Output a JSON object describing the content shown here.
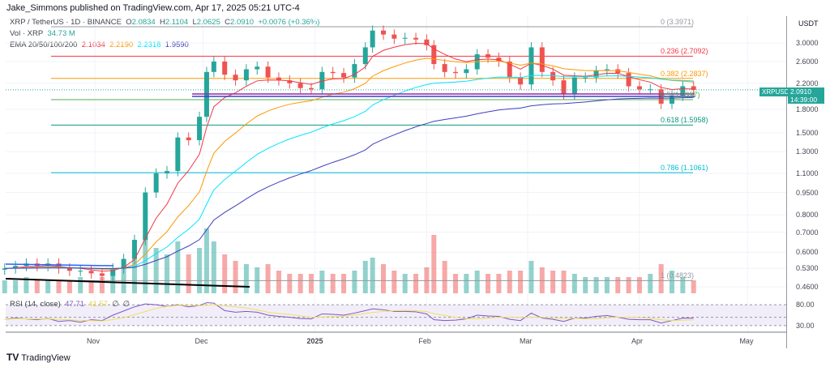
{
  "header": {
    "publisher": "Jake_Simmons published on TradingView.com, Apr 17, 2025 05:21 UTC-4",
    "symbol": "XRP / TetherUS · 1D · BINANCE",
    "o_label": "O",
    "o": "2.0834",
    "h_label": "H",
    "h": "2.1104",
    "l_label": "L",
    "l": "2.0625",
    "c_label": "C",
    "c": "2.0910",
    "change": "+0.0076 (+0.36%)",
    "vol_label": "Vol · XRP",
    "vol": "34.73 M",
    "ema_label": "EMA 20/50/100/200",
    "ema20": "2.1034",
    "ema50": "2.2190",
    "ema100": "2.2318",
    "ema200": "1.9590",
    "rsi_label": "RSI (14, close)",
    "rsi": "47.71",
    "rsi_ma": "41.57",
    "rsi_na1": "∅",
    "rsi_na2": "∅"
  },
  "colors": {
    "up": "#26a69a",
    "down": "#ef5350",
    "ema20": "#f23645",
    "ema50": "#ff9800",
    "ema100": "#00e5ff",
    "ema200": "#3f3fbf",
    "rsi": "#7e57c2",
    "rsi_ma": "#f0e060"
  },
  "price_tag": {
    "symbol": "XRPUSDT",
    "price": "2.0910",
    "countdown": "14:39:00"
  },
  "footer": {
    "logo": "TradingView"
  },
  "chart_data": {
    "type": "candlestick",
    "currency": "USDT",
    "y_scale": "log",
    "ylim": [
      0.44,
      3.7
    ],
    "y_ticks": [
      "3.0000",
      "2.6000",
      "2.2000",
      "1.8000",
      "1.5000",
      "1.3000",
      "1.1000",
      "0.9500",
      "0.8000",
      "0.7000",
      "0.6000",
      "0.5300",
      "0.4600"
    ],
    "x_ticks": [
      {
        "label": "Nov",
        "date": "2024-11-01"
      },
      {
        "label": "Dec",
        "date": "2024-12-01"
      },
      {
        "label": "2025",
        "date": "2025-01-01"
      },
      {
        "label": "Feb",
        "date": "2025-02-01"
      },
      {
        "label": "Mar",
        "date": "2025-03-01"
      },
      {
        "label": "Apr",
        "date": "2025-04-01"
      },
      {
        "label": "May",
        "date": "2025-05-01"
      }
    ],
    "fib_levels": [
      {
        "label": "0 (3.3971)",
        "value": 3.3971,
        "color": "#9598a1"
      },
      {
        "label": "0.236 (2.7092)",
        "value": 2.7092,
        "color": "#f23645"
      },
      {
        "label": "0.382 (2.2837)",
        "value": 2.2837,
        "color": "#ff9800"
      },
      {
        "label": "0.5 (1.9397)",
        "value": 1.9397,
        "color": "#4caf50"
      },
      {
        "label": "0.618 (1.5958)",
        "value": 1.5958,
        "color": "#089981"
      },
      {
        "label": "0.786 (1.1061)",
        "value": 1.1061,
        "color": "#00bcd4"
      },
      {
        "label": "1 (0.4823)",
        "value": 0.4823,
        "color": "#9598a1"
      }
    ],
    "rsi_ticks": [
      "80.00",
      "30.00"
    ],
    "closes": [
      [
        "2024-10-07",
        0.53
      ],
      [
        "2024-10-10",
        0.54
      ],
      [
        "2024-10-13",
        0.55
      ],
      [
        "2024-10-16",
        0.54
      ],
      [
        "2024-10-19",
        0.55
      ],
      [
        "2024-10-22",
        0.53
      ],
      [
        "2024-10-25",
        0.52
      ],
      [
        "2024-10-28",
        0.52
      ],
      [
        "2024-10-31",
        0.51
      ],
      [
        "2024-11-03",
        0.5
      ],
      [
        "2024-11-06",
        0.53
      ],
      [
        "2024-11-09",
        0.57
      ],
      [
        "2024-11-12",
        0.66
      ],
      [
        "2024-11-15",
        0.95
      ],
      [
        "2024-11-18",
        1.1
      ],
      [
        "2024-11-21",
        1.12
      ],
      [
        "2024-11-24",
        1.45
      ],
      [
        "2024-11-27",
        1.42
      ],
      [
        "2024-11-30",
        1.7
      ],
      [
        "2024-12-02",
        2.4
      ],
      [
        "2024-12-04",
        2.6
      ],
      [
        "2024-12-07",
        2.35
      ],
      [
        "2024-12-10",
        2.25
      ],
      [
        "2024-12-13",
        2.45
      ],
      [
        "2024-12-16",
        2.5
      ],
      [
        "2024-12-19",
        2.3
      ],
      [
        "2024-12-22",
        2.25
      ],
      [
        "2024-12-25",
        2.2
      ],
      [
        "2024-12-28",
        2.12
      ],
      [
        "2024-12-31",
        2.1
      ],
      [
        "2025-01-03",
        2.4
      ],
      [
        "2025-01-06",
        2.38
      ],
      [
        "2025-01-09",
        2.3
      ],
      [
        "2025-01-12",
        2.55
      ],
      [
        "2025-01-15",
        2.9
      ],
      [
        "2025-01-17",
        3.3
      ],
      [
        "2025-01-20",
        3.2
      ],
      [
        "2025-01-23",
        3.1
      ],
      [
        "2025-01-26",
        3.12
      ],
      [
        "2025-01-29",
        3.08
      ],
      [
        "2025-02-01",
        2.95
      ],
      [
        "2025-02-03",
        2.55
      ],
      [
        "2025-02-06",
        2.4
      ],
      [
        "2025-02-09",
        2.38
      ],
      [
        "2025-02-12",
        2.45
      ],
      [
        "2025-02-15",
        2.75
      ],
      [
        "2025-02-18",
        2.68
      ],
      [
        "2025-02-21",
        2.6
      ],
      [
        "2025-02-24",
        2.3
      ],
      [
        "2025-02-27",
        2.18
      ],
      [
        "2025-03-02",
        2.9
      ],
      [
        "2025-03-05",
        2.4
      ],
      [
        "2025-03-08",
        2.25
      ],
      [
        "2025-03-11",
        2.02
      ],
      [
        "2025-03-14",
        2.3
      ],
      [
        "2025-03-17",
        2.3
      ],
      [
        "2025-03-20",
        2.42
      ],
      [
        "2025-03-23",
        2.45
      ],
      [
        "2025-03-26",
        2.38
      ],
      [
        "2025-03-29",
        2.15
      ],
      [
        "2025-04-01",
        2.1
      ],
      [
        "2025-04-04",
        2.1
      ],
      [
        "2025-04-07",
        1.88
      ],
      [
        "2025-04-10",
        2.0
      ],
      [
        "2025-04-13",
        2.15
      ],
      [
        "2025-04-16",
        2.09
      ]
    ],
    "volume_relative": [
      0.2,
      0.2,
      0.25,
      0.2,
      0.2,
      0.2,
      0.2,
      0.25,
      0.2,
      0.25,
      0.35,
      0.5,
      0.7,
      0.9,
      0.7,
      0.6,
      0.8,
      0.6,
      0.7,
      1.0,
      0.8,
      0.6,
      0.5,
      0.45,
      0.4,
      0.45,
      0.35,
      0.3,
      0.3,
      0.3,
      0.35,
      0.3,
      0.3,
      0.35,
      0.5,
      0.55,
      0.45,
      0.35,
      0.3,
      0.3,
      0.4,
      0.9,
      0.5,
      0.3,
      0.3,
      0.35,
      0.3,
      0.3,
      0.35,
      0.35,
      0.5,
      0.4,
      0.35,
      0.35,
      0.3,
      0.25,
      0.25,
      0.25,
      0.25,
      0.25,
      0.25,
      0.3,
      0.45,
      0.35,
      0.25,
      0.2
    ],
    "rsi": [
      45,
      48,
      46,
      44,
      47,
      40,
      42,
      38,
      44,
      42,
      55,
      65,
      75,
      82,
      80,
      76,
      80,
      75,
      78,
      85,
      84,
      66,
      62,
      64,
      62,
      55,
      52,
      50,
      47,
      46,
      58,
      57,
      55,
      60,
      66,
      70,
      68,
      64,
      64,
      63,
      58,
      44,
      42,
      43,
      46,
      55,
      53,
      52,
      45,
      42,
      60,
      48,
      45,
      40,
      48,
      48,
      52,
      54,
      50,
      45,
      44,
      44,
      36,
      42,
      48,
      47.71
    ]
  }
}
